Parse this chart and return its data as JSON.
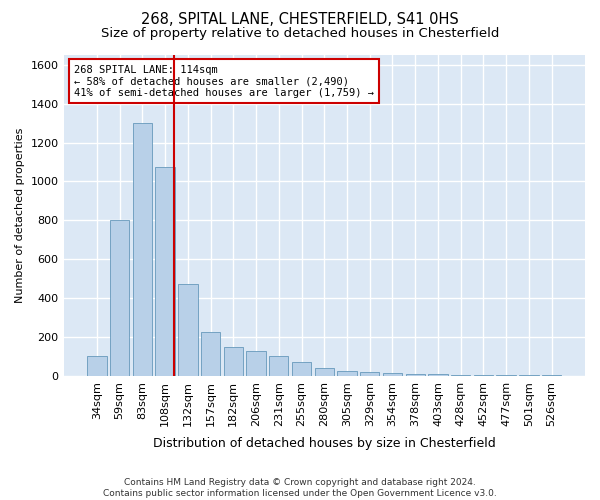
{
  "title": "268, SPITAL LANE, CHESTERFIELD, S41 0HS",
  "subtitle": "Size of property relative to detached houses in Chesterfield",
  "xlabel": "Distribution of detached houses by size in Chesterfield",
  "ylabel": "Number of detached properties",
  "categories": [
    "34sqm",
    "59sqm",
    "83sqm",
    "108sqm",
    "132sqm",
    "157sqm",
    "182sqm",
    "206sqm",
    "231sqm",
    "255sqm",
    "280sqm",
    "305sqm",
    "329sqm",
    "354sqm",
    "378sqm",
    "403sqm",
    "428sqm",
    "452sqm",
    "477sqm",
    "501sqm",
    "526sqm"
  ],
  "values": [
    100,
    800,
    1300,
    1075,
    475,
    225,
    150,
    130,
    100,
    70,
    40,
    25,
    20,
    15,
    10,
    8,
    5,
    5,
    5,
    5,
    5
  ],
  "bar_color": "#b8d0e8",
  "bar_edgecolor": "#6699bb",
  "bg_color": "#dce8f5",
  "grid_color": "#ffffff",
  "vline_x": 3.4,
  "vline_color": "#cc0000",
  "ylim": [
    0,
    1650
  ],
  "annotation_text": "268 SPITAL LANE: 114sqm\n← 58% of detached houses are smaller (2,490)\n41% of semi-detached houses are larger (1,759) →",
  "footnote": "Contains HM Land Registry data © Crown copyright and database right 2024.\nContains public sector information licensed under the Open Government Licence v3.0.",
  "title_fontsize": 10.5,
  "subtitle_fontsize": 9.5,
  "xlabel_fontsize": 9,
  "ylabel_fontsize": 8,
  "tick_fontsize": 8,
  "annot_fontsize": 7.5,
  "footnote_fontsize": 6.5,
  "yticks": [
    0,
    200,
    400,
    600,
    800,
    1000,
    1200,
    1400,
    1600
  ]
}
